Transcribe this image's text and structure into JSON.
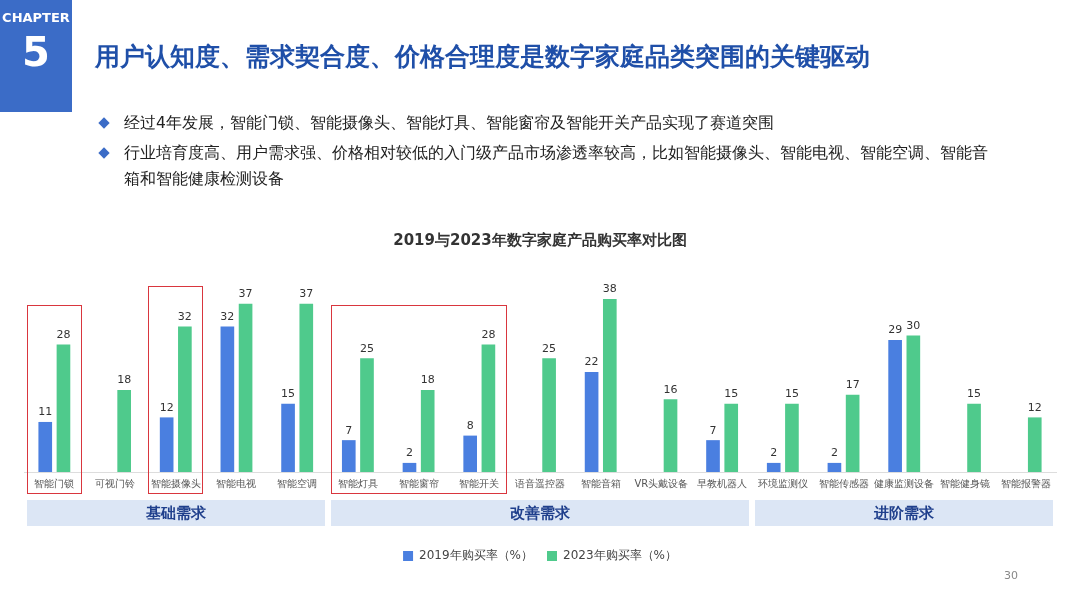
{
  "chart_data": {
    "type": "bar",
    "title": "2019与2023年数字家庭产品购买率对比图",
    "categories": [
      "智能门锁",
      "可视门铃",
      "智能摄像头",
      "智能电视",
      "智能空调",
      "智能灯具",
      "智能窗帘",
      "智能开关",
      "语音遥控器",
      "智能音箱",
      "VR头戴设备",
      "早教机器人",
      "环境监测仪",
      "智能传感器",
      "健康监测设备",
      "智能健身镜",
      "智能报警器"
    ],
    "series": [
      {
        "name": "2019年购买率（%）",
        "color": "#4a7fe0",
        "values": [
          11,
          null,
          12,
          32,
          15,
          7,
          2,
          8,
          null,
          22,
          null,
          7,
          2,
          2,
          29,
          null,
          null
        ]
      },
      {
        "name": "2023年购买率（%）",
        "color": "#4fca8c",
        "values": [
          28,
          18,
          32,
          37,
          37,
          25,
          18,
          28,
          25,
          38,
          16,
          15,
          15,
          17,
          30,
          15,
          12
        ]
      }
    ],
    "data_labels": true,
    "legend": "bottom",
    "grid": false,
    "annotations": [
      "CHAPTER",
      "5",
      "用户认知度、需求契合度、价格合理度是数字家庭品类突围的关键驱动",
      "经过4年发展，智能门锁、智能摄像头、智能灯具、智能窗帘及智能开关产品实现了赛道突围",
      "行业培育度高、用户需求强、价格相对较低的入门级产品市场渗透率较高，比如智能摄像头、智能电视、智能空调、智能音箱和智能健康检测设备",
      "30",
      "基础需求",
      "改善需求",
      "进阶需求"
    ]
  }
}
